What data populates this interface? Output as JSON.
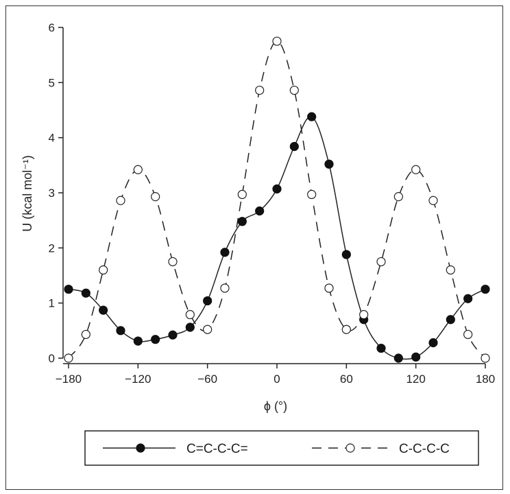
{
  "chart_data": {
    "type": "line",
    "title": "",
    "xlabel": "ϕ (°)",
    "ylabel": "U (kcal mol⁻¹)",
    "xlim": [
      -180,
      180
    ],
    "ylim": [
      0,
      6
    ],
    "x_ticks": [
      -180,
      -120,
      -60,
      0,
      60,
      120,
      180
    ],
    "y_ticks": [
      0,
      1,
      2,
      3,
      4,
      5,
      6
    ],
    "grid": false,
    "legend_position": "bottom",
    "series": [
      {
        "name": "C=C-C-C=",
        "style": "solid",
        "marker": "filled-circle",
        "x": [
          -180,
          -165,
          -150,
          -135,
          -120,
          -105,
          -90,
          -75,
          -60,
          -45,
          -30,
          -15,
          0,
          15,
          30,
          45,
          60,
          75,
          90,
          105,
          120,
          135,
          150,
          165,
          180
        ],
        "y": [
          1.25,
          1.18,
          0.87,
          0.5,
          0.31,
          0.34,
          0.42,
          0.56,
          1.04,
          1.92,
          2.48,
          2.67,
          3.07,
          3.84,
          4.38,
          3.52,
          1.88,
          0.7,
          0.18,
          0.0,
          0.02,
          0.28,
          0.7,
          1.08,
          1.25
        ]
      },
      {
        "name": "C-C-C-C",
        "style": "dashed",
        "marker": "open-circle",
        "x": [
          -180,
          -165,
          -150,
          -135,
          -120,
          -105,
          -90,
          -75,
          -60,
          -45,
          -30,
          -15,
          0,
          15,
          30,
          45,
          60,
          75,
          90,
          105,
          120,
          135,
          150,
          165,
          180
        ],
        "y": [
          0.0,
          0.43,
          1.6,
          2.86,
          3.42,
          2.93,
          1.75,
          0.79,
          0.52,
          1.27,
          2.97,
          4.86,
          5.75,
          4.86,
          2.97,
          1.27,
          0.52,
          0.79,
          1.75,
          2.93,
          3.42,
          2.86,
          1.6,
          0.43,
          0.0
        ]
      }
    ]
  },
  "colors": {
    "line": "#222222",
    "marker_fill": "#111111",
    "open_marker_fill": "#ffffff",
    "background": "#ffffff"
  }
}
